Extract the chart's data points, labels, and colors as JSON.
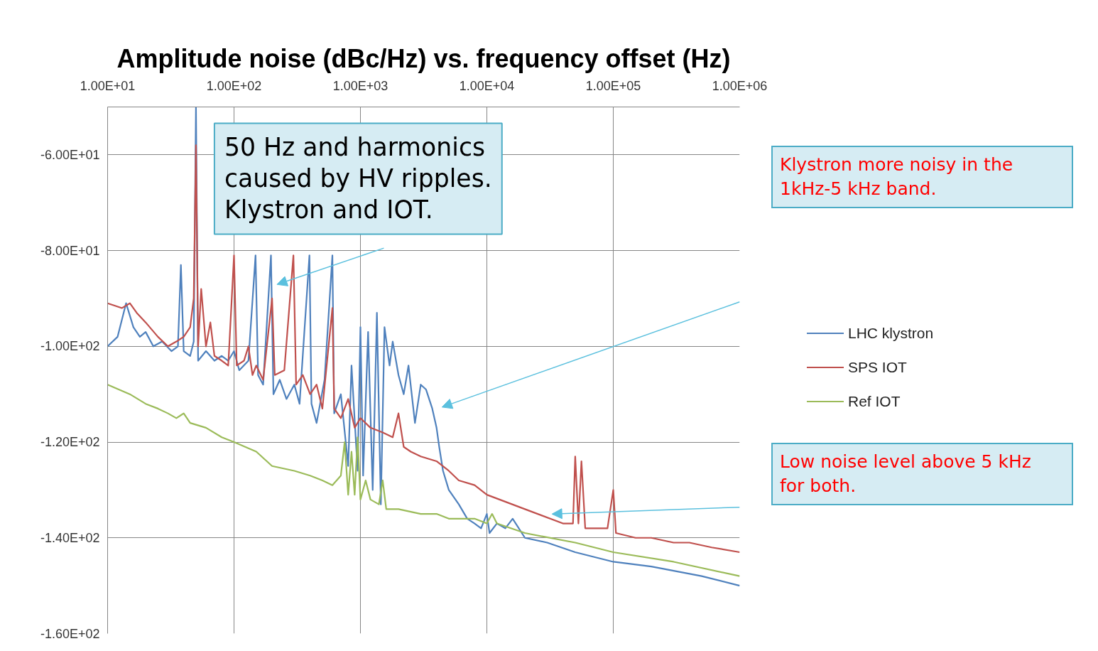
{
  "chart_data": {
    "type": "line",
    "title": "Amplitude noise (dBc/Hz) vs. frequency offset (Hz)",
    "log": "x",
    "grid": true,
    "legend": "right",
    "xlim": [
      10,
      1000000
    ],
    "xticks": [
      {
        "value": 10,
        "label": "1.00E+01"
      },
      {
        "value": 100,
        "label": "1.00E+02"
      },
      {
        "value": 1000,
        "label": "1.00E+03"
      },
      {
        "value": 10000,
        "label": "1.00E+04"
      },
      {
        "value": 100000,
        "label": "1.00E+05"
      },
      {
        "value": 1000000,
        "label": "1.00E+06"
      }
    ],
    "ylim": [
      -160,
      -50
    ],
    "yticks": [
      {
        "value": -160,
        "label": "-1.60E+02"
      },
      {
        "value": -140,
        "label": "-1.40E+02"
      },
      {
        "value": -120,
        "label": "-1.20E+02"
      },
      {
        "value": -100,
        "label": "-1.00E+02"
      },
      {
        "value": -80,
        "label": "-8.00E+01"
      },
      {
        "value": -60,
        "label": "-6.00E+01"
      }
    ],
    "series": [
      {
        "name": "LHC klystron",
        "color": "#4f81bd",
        "x": [
          10,
          12,
          14,
          16,
          18,
          20,
          23,
          27,
          32,
          36,
          38,
          40,
          45,
          48,
          50,
          52,
          60,
          70,
          80,
          90,
          100,
          110,
          130,
          148,
          155,
          170,
          196,
          205,
          230,
          260,
          300,
          330,
          395,
          410,
          450,
          520,
          600,
          620,
          700,
          800,
          850,
          950,
          1000,
          1050,
          1150,
          1250,
          1350,
          1450,
          1550,
          1700,
          1800,
          2000,
          2200,
          2400,
          2700,
          3000,
          3300,
          3700,
          4000,
          4200,
          4500,
          5000,
          6000,
          7000,
          8000,
          9000,
          10000,
          10500,
          12000,
          14000,
          16000,
          20000,
          30000,
          50000,
          100000,
          200000,
          500000,
          1000000
        ],
        "values": [
          -100,
          -98,
          -91,
          -96,
          -98,
          -97,
          -100,
          -99,
          -101,
          -100,
          -83,
          -101,
          -102,
          -99,
          -50,
          -103,
          -101,
          -103,
          -102,
          -103,
          -101,
          -105,
          -103,
          -81,
          -106,
          -108,
          -81,
          -110,
          -107,
          -111,
          -108,
          -112,
          -81,
          -112,
          -116,
          -107,
          -81,
          -114,
          -110,
          -125,
          -104,
          -126,
          -96,
          -127,
          -97,
          -130,
          -93,
          -133,
          -96,
          -104,
          -99,
          -106,
          -110,
          -104,
          -116,
          -108,
          -109,
          -113,
          -117,
          -121,
          -126,
          -130,
          -133,
          -136,
          -137,
          -138,
          -135,
          -139,
          -137,
          -138,
          -136,
          -140,
          -141,
          -143,
          -145,
          -146,
          -148,
          -150
        ]
      },
      {
        "name": "SPS IOT",
        "color": "#c0504d",
        "x": [
          10,
          13,
          15,
          17,
          20,
          25,
          30,
          35,
          40,
          45,
          48,
          50,
          52,
          55,
          60,
          65,
          70,
          80,
          90,
          100,
          105,
          120,
          130,
          140,
          150,
          170,
          200,
          210,
          250,
          295,
          310,
          350,
          400,
          450,
          500,
          600,
          620,
          700,
          800,
          900,
          1000,
          1200,
          1500,
          1800,
          2000,
          2200,
          2500,
          3000,
          4000,
          5000,
          6000,
          8000,
          10000,
          20000,
          40000,
          48000,
          50000,
          53000,
          56000,
          60000,
          90000,
          100000,
          105000,
          150000,
          200000,
          300000,
          400000,
          600000,
          1000000
        ],
        "values": [
          -91,
          -92,
          -91,
          -93,
          -95,
          -98,
          -100,
          -99,
          -98,
          -96,
          -90,
          -58,
          -100,
          -88,
          -100,
          -95,
          -102,
          -103,
          -104,
          -81,
          -104,
          -103,
          -100,
          -106,
          -104,
          -107,
          -90,
          -106,
          -105,
          -81,
          -108,
          -106,
          -110,
          -108,
          -113,
          -92,
          -113,
          -115,
          -111,
          -117,
          -115,
          -117,
          -118,
          -119,
          -114,
          -121,
          -122,
          -123,
          -124,
          -126,
          -128,
          -129,
          -131,
          -134,
          -137,
          -137,
          -123,
          -137,
          -124,
          -138,
          -138,
          -130,
          -139,
          -140,
          -140,
          -141,
          -141,
          -142,
          -143
        ]
      },
      {
        "name": "Ref IOT",
        "color": "#9bbb59",
        "x": [
          10,
          15,
          20,
          25,
          30,
          35,
          40,
          45,
          60,
          80,
          100,
          150,
          200,
          300,
          400,
          500,
          600,
          700,
          750,
          800,
          850,
          900,
          950,
          1000,
          1100,
          1200,
          1400,
          1500,
          1600,
          2000,
          3000,
          4000,
          5000,
          6000,
          8000,
          10000,
          11000,
          12000,
          20000,
          50000,
          100000,
          300000,
          1000000
        ],
        "values": [
          -108,
          -110,
          -112,
          -113,
          -114,
          -115,
          -114,
          -116,
          -117,
          -119,
          -120,
          -122,
          -125,
          -126,
          -127,
          -128,
          -129,
          -127,
          -120,
          -131,
          -122,
          -131,
          -119,
          -132,
          -128,
          -132,
          -133,
          -128,
          -134,
          -134,
          -135,
          -135,
          -136,
          -136,
          -136,
          -137,
          -135,
          -137,
          -139,
          -141,
          -143,
          -145,
          -148
        ]
      }
    ],
    "annotations": [
      "50 Hz and harmonics\ncaused by HV ripples.\nKlystron and IOT.",
      "Klystron more noisy in the\n1kHz-5 kHz band.",
      "Low noise level above 5 kHz\nfor both."
    ]
  }
}
